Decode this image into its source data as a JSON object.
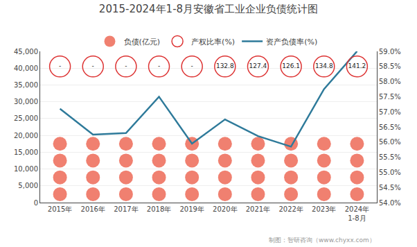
{
  "chart_data": {
    "type": "line",
    "title": "2015-2024年1-8月安徽省工业企业负债统计图",
    "categories": [
      "2015年",
      "2016年",
      "2017年",
      "2018年",
      "2019年",
      "2020年",
      "2021年",
      "2022年",
      "2023年",
      "2024年\n1-8月"
    ],
    "series": [
      {
        "name": "负债(亿元)",
        "type": "scatter",
        "marker": "circle",
        "color": "#f08070",
        "values": [
          2500,
          2500,
          2500,
          2500,
          2500,
          2500,
          2500,
          2500,
          2500,
          2500
        ]
      },
      {
        "name": "负债(亿元)",
        "type": "scatter",
        "marker": "circle",
        "color": "#f08070",
        "values": [
          7500,
          7500,
          7500,
          7500,
          7500,
          7500,
          7500,
          7500,
          7500,
          7500
        ]
      },
      {
        "name": "负债(亿元)",
        "type": "scatter",
        "marker": "circle",
        "color": "#f08070",
        "values": [
          12500,
          12500,
          12500,
          12500,
          12500,
          12500,
          12500,
          12500,
          12500,
          12500
        ]
      },
      {
        "name": "负债(亿元)",
        "type": "scatter",
        "marker": "circle",
        "color": "#f08070",
        "values": [
          17500,
          17500,
          17500,
          17500,
          17500,
          17500,
          17500,
          17500,
          17500,
          17500
        ]
      },
      {
        "name": "产权比率(%)",
        "type": "scatter",
        "marker": "circle-open",
        "color": "#dd3333",
        "data_labels": true,
        "values": [
          null,
          null,
          null,
          null,
          null,
          132.8,
          127.4,
          126.1,
          134.8,
          141.2
        ],
        "value_labels": [
          "-",
          "-",
          "-",
          "-",
          "-",
          "132.8",
          "127.4",
          "126.1",
          "134.8",
          "141.2"
        ]
      },
      {
        "name": "资产负债率(%)",
        "type": "line",
        "axis": "y2",
        "color": "#2e7a9a",
        "values": [
          57.1,
          56.25,
          56.3,
          57.5,
          55.95,
          56.75,
          56.2,
          55.85,
          57.75,
          59.0
        ]
      }
    ],
    "ylim": [
      0,
      45000
    ],
    "yticks": [
      0,
      {
        "value": 5000,
        "label": "5,000"
      },
      {
        "value": 10000,
        "label": "10,000"
      },
      {
        "value": 15000,
        "label": "15,000"
      },
      {
        "value": 20000,
        "label": "20,000"
      },
      {
        "value": 25000,
        "label": "25,000"
      },
      {
        "value": 30000,
        "label": "30,000"
      },
      {
        "value": 35000,
        "label": "35,000"
      },
      {
        "value": 40000,
        "label": "40,000"
      },
      {
        "value": 45000,
        "label": "45,000"
      }
    ],
    "y2lim": [
      54.0,
      59.0
    ],
    "y2ticks": [
      {
        "value": 54.0,
        "label": "54.0%"
      },
      {
        "value": 54.5,
        "label": "54.5%"
      },
      {
        "value": 55.0,
        "label": "55.0%"
      },
      {
        "value": 55.5,
        "label": "55.5%"
      },
      {
        "value": 56.0,
        "label": "56.0%"
      },
      {
        "value": 56.5,
        "label": "56.5%"
      },
      {
        "value": 57.0,
        "label": "57.0%"
      },
      {
        "value": 57.5,
        "label": "57.5%"
      },
      {
        "value": 58.0,
        "label": "58.0%"
      },
      {
        "value": 58.5,
        "label": "58.5%"
      },
      {
        "value": 59.0,
        "label": "59.0%"
      }
    ],
    "grid": true,
    "legend": "top",
    "annotations": [
      "制图：智研咨询（www.chyxx.com）"
    ]
  }
}
